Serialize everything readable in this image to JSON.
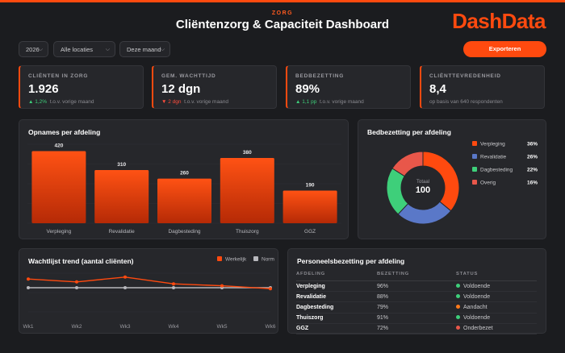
{
  "header": {
    "eyebrow": "ZORG",
    "title": "Cliëntenzorg & Capaciteit Dashboard",
    "logo": "DashData"
  },
  "filters": {
    "year": "2026",
    "location": "Alle locaties",
    "period": "Deze maand",
    "export_label": "Exporteren"
  },
  "kpis": [
    {
      "label": "CLIËNTEN IN ZORG",
      "value": "1.926",
      "delta": "▲ 1,2%",
      "delta_dir": "up",
      "note": "t.o.v. vorige maand"
    },
    {
      "label": "GEM. WACHTTIJD",
      "value": "12 dgn",
      "delta": "▼ 2 dgn",
      "delta_dir": "down",
      "note": "t.o.v. vorige maand"
    },
    {
      "label": "BEDBEZETTING",
      "value": "89%",
      "delta": "▲ 1,1 pp",
      "delta_dir": "up",
      "note": "t.o.v. vorige maand"
    },
    {
      "label": "CLIËNTTEVREDENHEID",
      "value": "8,4",
      "delta": "",
      "delta_dir": "",
      "note": "op basis van 640 respondenten"
    }
  ],
  "panels": {
    "opnames_title": "Opnames per afdeling",
    "bed_title": "Bedbezetting per afdeling",
    "trend_title": "Wachtlijst trend (aantal cliënten)",
    "staff_title": "Personeelsbezetting per afdeling"
  },
  "chart_data": [
    {
      "type": "bar",
      "title": "Opnames per afdeling",
      "categories": [
        "Verpleging",
        "Revalidatie",
        "Dagbesteding",
        "Thuiszorg",
        "GGZ"
      ],
      "values": [
        420,
        310,
        260,
        380,
        190
      ],
      "ylim": [
        0,
        460
      ],
      "color": "#ff4a0f"
    },
    {
      "type": "pie",
      "title": "Bedbezetting per afdeling",
      "center_label": "Totaal",
      "center_value": "100",
      "slices": [
        {
          "label": "Verpleging",
          "value": 36,
          "display": "36%",
          "color": "#ff4a0f"
        },
        {
          "label": "Revalidatie",
          "value": 26,
          "display": "26%",
          "color": "#5a78c8"
        },
        {
          "label": "Dagbesteding",
          "value": 22,
          "display": "22%",
          "color": "#3ecf7a"
        },
        {
          "label": "Overig",
          "value": 16,
          "display": "16%",
          "color": "#e8574a"
        }
      ]
    },
    {
      "type": "line",
      "title": "Wachtlijst trend (aantal cliënten)",
      "x": [
        "Wk1",
        "Wk2",
        "Wk3",
        "Wk4",
        "Wk5",
        "Wk6"
      ],
      "ylim": [
        0,
        40
      ],
      "series": [
        {
          "name": "Werkelijk",
          "values": [
            34,
            31,
            36,
            29,
            27,
            24
          ],
          "color": "#ff4a0f"
        },
        {
          "name": "Norm",
          "values": [
            25,
            25,
            25,
            25,
            25,
            25
          ],
          "color": "#b8b8bd"
        }
      ]
    }
  ],
  "staff": {
    "columns": [
      "AFDELING",
      "BEZETTING",
      "STATUS"
    ],
    "rows": [
      {
        "dept": "Verpleging",
        "occ": "96%",
        "status": "Voldoende",
        "color": "#3ecf7a"
      },
      {
        "dept": "Revalidatie",
        "occ": "88%",
        "status": "Voldoende",
        "color": "#3ecf7a"
      },
      {
        "dept": "Dagbesteding",
        "occ": "79%",
        "status": "Aandacht",
        "color": "#ff7a1a"
      },
      {
        "dept": "Thuiszorg",
        "occ": "91%",
        "status": "Voldoende",
        "color": "#3ecf7a"
      },
      {
        "dept": "GGZ",
        "occ": "72%",
        "status": "Onderbezet",
        "color": "#e8574a"
      }
    ]
  },
  "colors": {
    "accent": "#ff4a0f",
    "panel": "#26272b",
    "background": "#1b1c1f"
  }
}
